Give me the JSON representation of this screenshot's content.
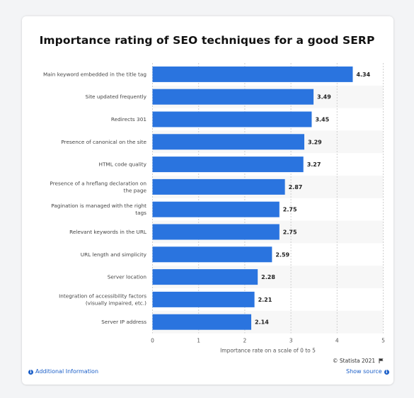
{
  "chart_data": {
    "type": "bar",
    "orientation": "horizontal",
    "title": "Importance rating of SEO techniques for a good SERP",
    "xlabel": "Importance rate on a scale of 0 to 5",
    "ylabel": "",
    "xlim": [
      0,
      5
    ],
    "ticks": [
      "0",
      "1",
      "2",
      "3",
      "4",
      "5"
    ],
    "bar_color": "#2a74df",
    "categories": [
      "Main keyword embedded in the title tag",
      "Site updated frequently",
      "Redirects 301",
      "Presence of canonical on the site",
      "HTML code quality",
      "Presence of a hreflang declaration on the page",
      "Pagination is managed with the right tags",
      "Relevant keywords in the URL",
      "URL length and simplicity",
      "Server location",
      "Integration of accessibility factors (visually impaired, etc.)",
      "Server IP address"
    ],
    "values": [
      4.34,
      3.49,
      3.45,
      3.29,
      3.27,
      2.87,
      2.75,
      2.75,
      2.59,
      2.28,
      2.21,
      2.14
    ],
    "value_labels": [
      "4.34",
      "3.49",
      "3.45",
      "3.29",
      "3.27",
      "2.87",
      "2.75",
      "2.75",
      "2.59",
      "2.28",
      "2.21",
      "2.14"
    ],
    "grid": true,
    "legend": "none"
  },
  "footer": {
    "credit": "© Statista 2021",
    "additional_info": "Additional Information",
    "show_source": "Show source",
    "link_color": "#1a5ec8"
  }
}
